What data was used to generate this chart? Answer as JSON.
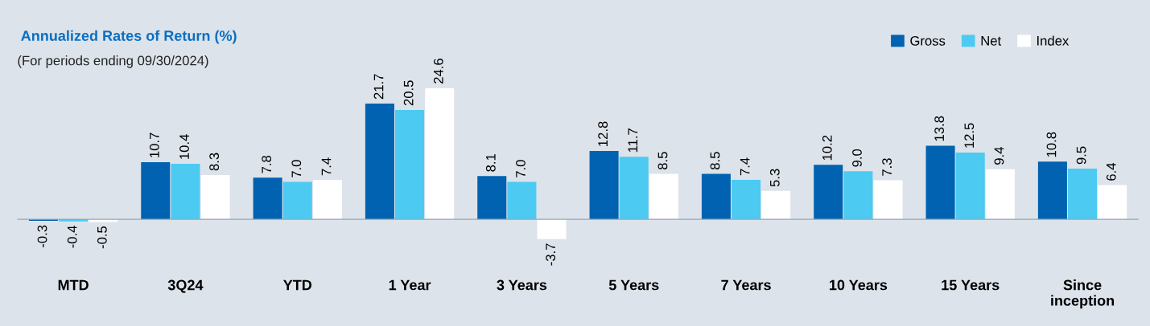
{
  "chart_data": {
    "type": "bar",
    "title": "Annualized Rates of Return (%)",
    "subtitle": "(For periods ending 09/30/2024)",
    "categories": [
      "MTD",
      "3Q24",
      "YTD",
      "1 Year",
      "3 Years",
      "5 Years",
      "7 Years",
      "10 Years",
      "15 Years",
      "Since\ninception"
    ],
    "series": [
      {
        "name": "Gross",
        "color": "#0062b1",
        "values": [
          -0.3,
          10.7,
          7.8,
          21.7,
          8.1,
          12.8,
          8.5,
          10.2,
          13.8,
          10.8
        ],
        "value_labels": [
          "-0.3",
          "10.7",
          "7.8",
          "21.7",
          "8.1",
          "12.8",
          "8.5",
          "10.2",
          "13.8",
          "10.8"
        ]
      },
      {
        "name": "Net",
        "color": "#4ccaf2",
        "values": [
          -0.4,
          10.4,
          7.0,
          20.5,
          7.0,
          11.7,
          7.4,
          9.0,
          12.5,
          9.5
        ],
        "value_labels": [
          "-0.4",
          "10.4",
          "7.0",
          "20.5",
          "7.0",
          "11.7",
          "7.4",
          "9.0",
          "12.5",
          "9.5"
        ]
      },
      {
        "name": "Index",
        "color": "#ffffff",
        "values": [
          -0.5,
          8.3,
          7.4,
          24.6,
          -3.7,
          8.5,
          5.3,
          7.3,
          9.4,
          6.4
        ],
        "value_labels": [
          "-0.5",
          "8.3",
          "7.4",
          "24.6",
          "-3.7",
          "8.5",
          "5.3",
          "7.3",
          "9.4",
          "6.4"
        ]
      }
    ],
    "legend": "top right",
    "grid": false,
    "tick_labels": "x"
  }
}
